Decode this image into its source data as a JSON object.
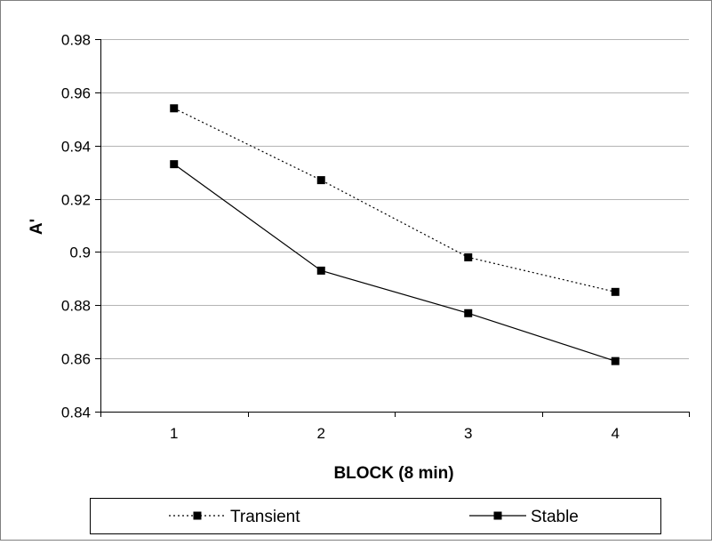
{
  "chart_data": {
    "type": "line",
    "title": "",
    "xlabel": "BLOCK (8 min)",
    "ylabel": "A'",
    "categories": [
      "1",
      "2",
      "3",
      "4"
    ],
    "ylim": [
      0.84,
      0.98
    ],
    "yticks": [
      0.84,
      0.86,
      0.88,
      0.9,
      0.92,
      0.94,
      0.96,
      0.98
    ],
    "ytick_labels": [
      "0.84",
      "0.86",
      "0.88",
      "0.9",
      "0.92",
      "0.94",
      "0.96",
      "0.98"
    ],
    "grid": "horizontal",
    "legend": "bottom",
    "series": [
      {
        "name": "Transient",
        "line_style": "dotted",
        "marker": "square",
        "color": "#000000",
        "values": [
          0.954,
          0.927,
          0.898,
          0.885
        ]
      },
      {
        "name": "Stable",
        "line_style": "solid",
        "marker": "square",
        "color": "#000000",
        "values": [
          0.933,
          0.893,
          0.877,
          0.859
        ]
      }
    ]
  }
}
